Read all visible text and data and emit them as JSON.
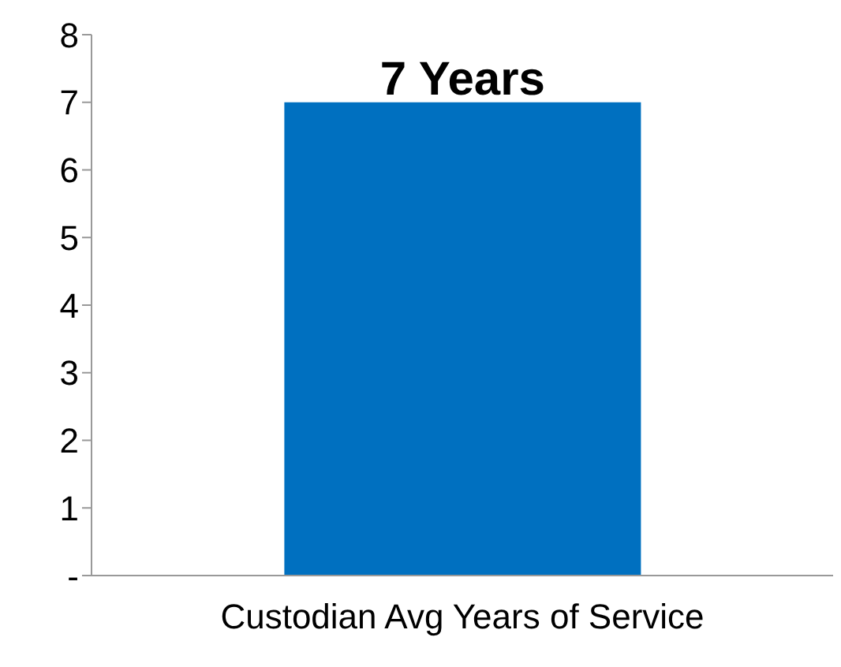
{
  "chart_data": {
    "type": "bar",
    "categories": [
      "Custodian Avg Years of Service"
    ],
    "values": [
      7
    ],
    "color": "#0070c0",
    "value_labels": [
      "7 Years"
    ],
    "ylim": [
      0,
      8
    ],
    "yticks": [
      {
        "value": 0,
        "label": "-"
      },
      1,
      2,
      3,
      4,
      5,
      6,
      7,
      8
    ],
    "grid": false,
    "legend": false
  }
}
